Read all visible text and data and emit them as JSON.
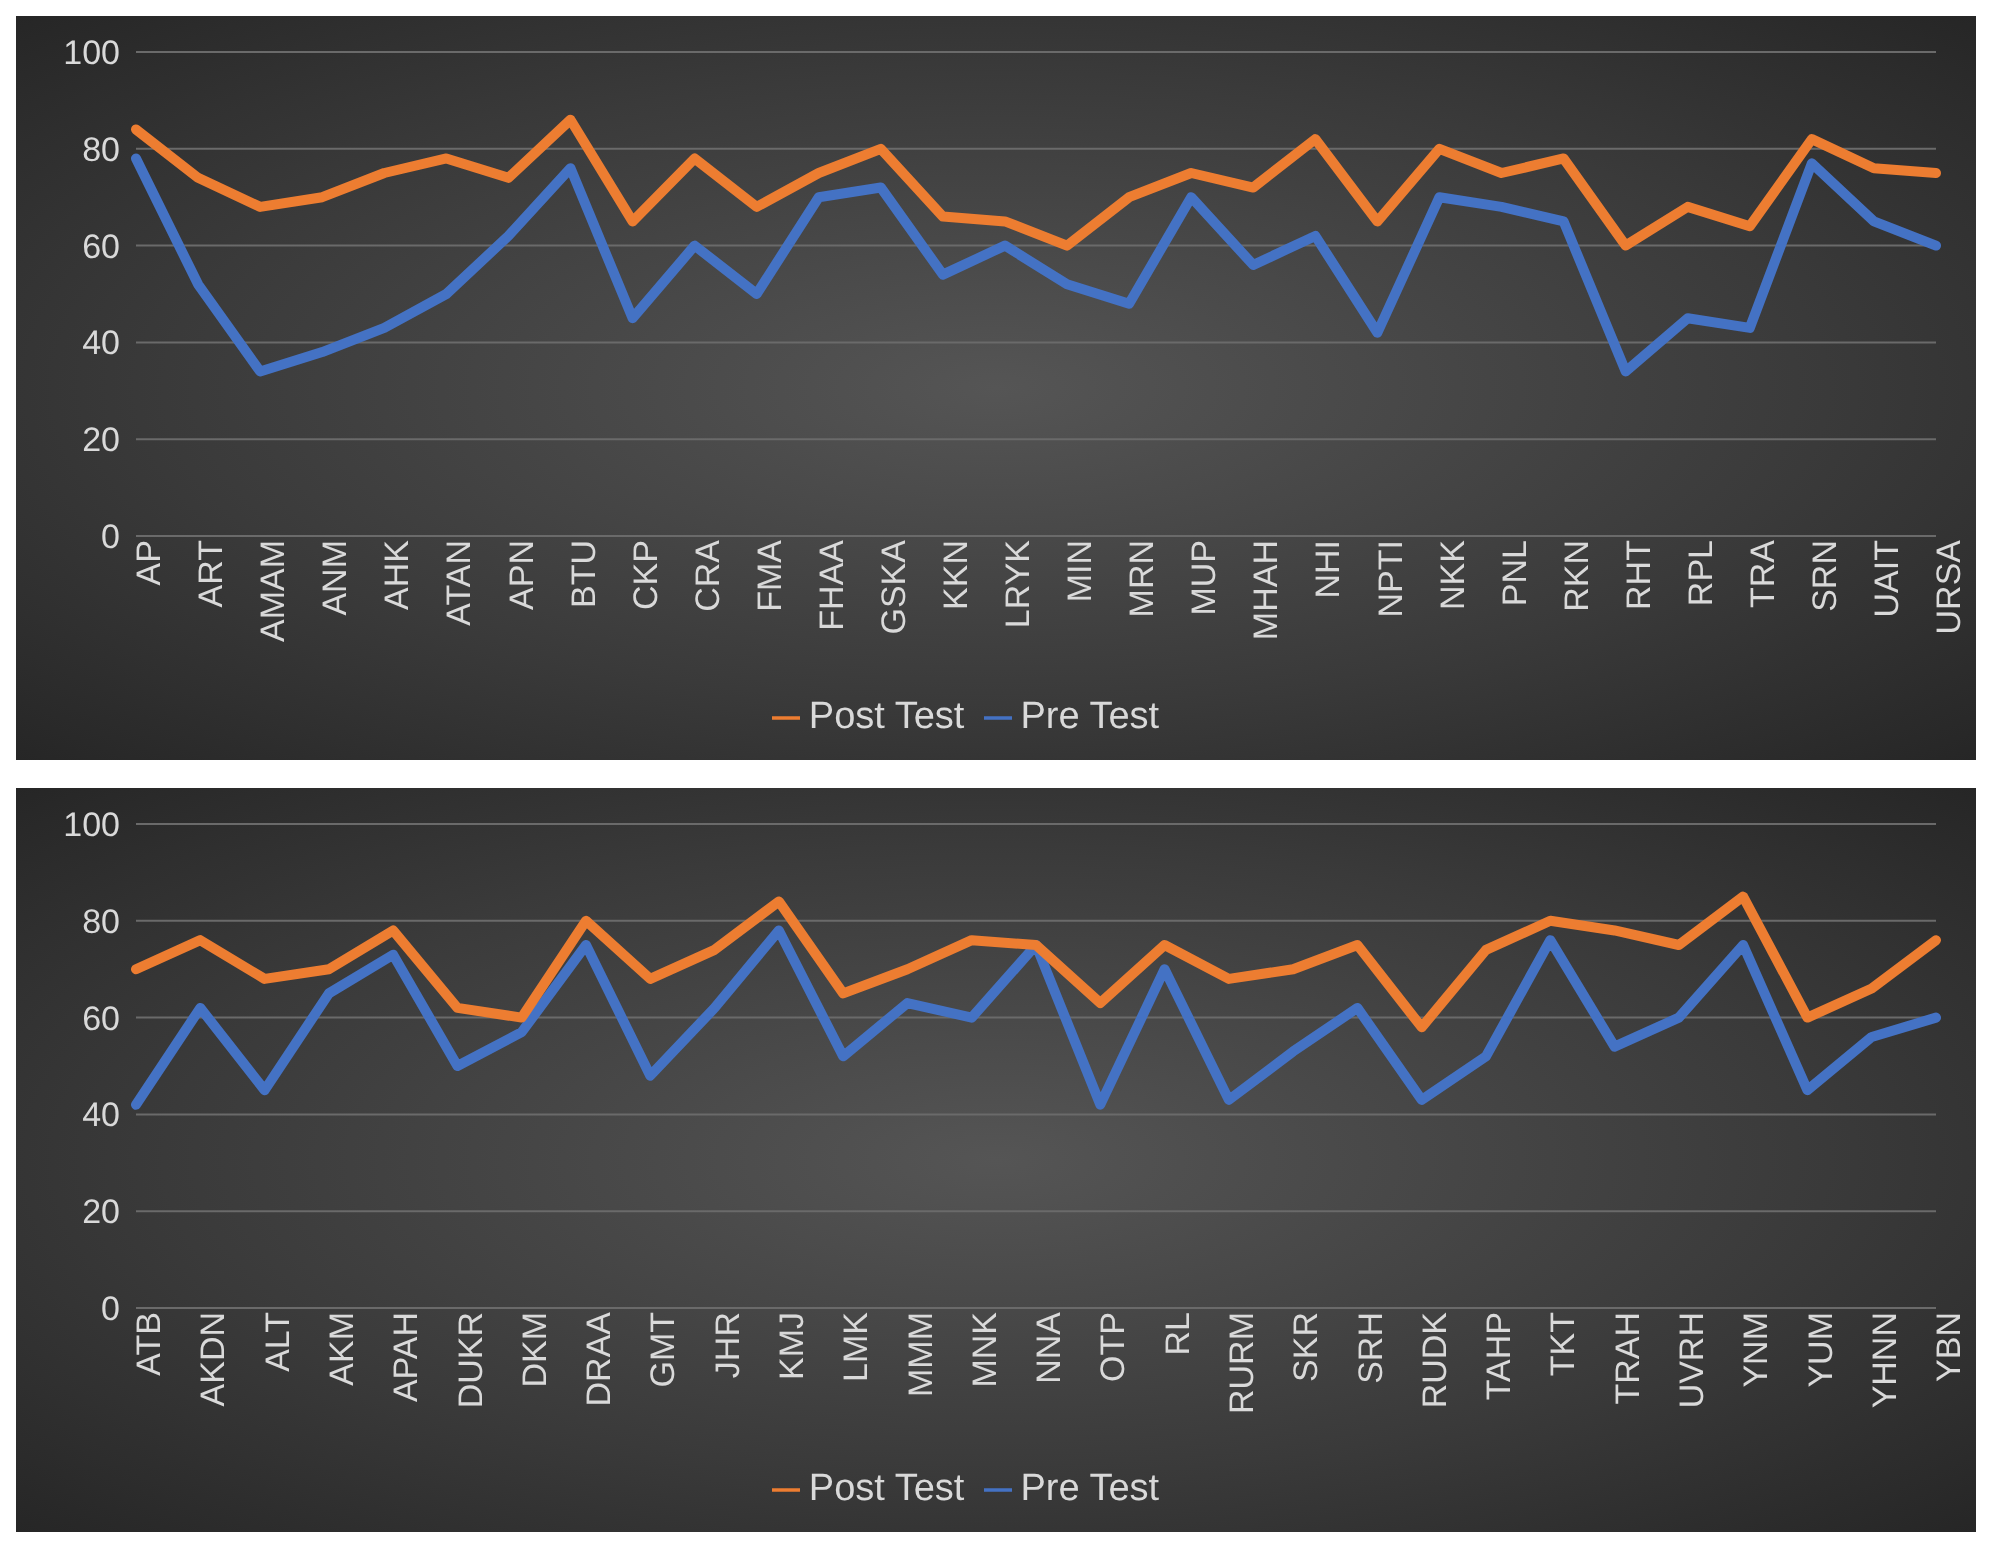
{
  "chart_data": [
    {
      "type": "line",
      "categories": [
        "AP",
        "ART",
        "AMAM",
        "ANM",
        "AHK",
        "ATAN",
        "APN",
        "BTU",
        "CKP",
        "CRA",
        "FMA",
        "FHAA",
        "GSKA",
        "KKN",
        "LRYK",
        "MIN",
        "MRN",
        "MUP",
        "MHAH",
        "NHI",
        "NPTI",
        "NKK",
        "PNL",
        "RKN",
        "RHT",
        "RPL",
        "TRA",
        "SRN",
        "UAIT",
        "URSA"
      ],
      "series": [
        {
          "name": "Pre Test",
          "color": "#4472c4",
          "values": [
            78,
            52,
            34,
            38,
            43,
            50,
            62,
            76,
            45,
            60,
            50,
            70,
            72,
            54,
            60,
            52,
            48,
            70,
            56,
            62,
            42,
            70,
            68,
            65,
            34,
            45,
            43,
            77,
            65,
            60
          ]
        },
        {
          "name": "Post Test",
          "color": "#ed7d31",
          "values": [
            84,
            74,
            68,
            70,
            75,
            78,
            74,
            86,
            65,
            78,
            68,
            75,
            80,
            66,
            65,
            60,
            70,
            75,
            72,
            82,
            65,
            80,
            75,
            78,
            60,
            68,
            64,
            82,
            76,
            75
          ]
        }
      ],
      "ylim": [
        0,
        100
      ],
      "yticks": [
        0,
        20,
        40,
        60,
        80,
        100
      ],
      "grid": "y",
      "legend": "bottom",
      "marker": "none",
      "line_style": "solid"
    },
    {
      "type": "line",
      "categories": [
        "ATB",
        "AKDN",
        "ALT",
        "AKM",
        "APAH",
        "DUKR",
        "DKM",
        "DRAA",
        "GMT",
        "JHR",
        "KMJ",
        "LMK",
        "MMM",
        "MNK",
        "NNA",
        "OTP",
        "RL",
        "RURM",
        "SKR",
        "SRH",
        "RUDK",
        "TAHP",
        "TKT",
        "TRAH",
        "UVRH",
        "YNM",
        "YUM",
        "YHNN",
        "YBN"
      ],
      "series": [
        {
          "name": "Pre Test",
          "color": "#4472c4",
          "values": [
            42,
            62,
            45,
            65,
            73,
            50,
            57,
            75,
            48,
            62,
            78,
            52,
            63,
            60,
            75,
            42,
            70,
            43,
            53,
            62,
            43,
            52,
            76,
            54,
            60,
            75,
            45,
            56,
            60
          ]
        },
        {
          "name": "Post Test",
          "color": "#ed7d31",
          "values": [
            70,
            76,
            68,
            70,
            78,
            62,
            60,
            80,
            68,
            74,
            84,
            65,
            70,
            76,
            75,
            63,
            75,
            68,
            70,
            75,
            58,
            74,
            80,
            78,
            75,
            85,
            60,
            66,
            76
          ]
        }
      ],
      "ylim": [
        0,
        100
      ],
      "yticks": [
        0,
        20,
        40,
        60,
        80,
        100
      ],
      "grid": "y",
      "legend": "bottom",
      "marker": "none",
      "line_style": "solid"
    }
  ]
}
